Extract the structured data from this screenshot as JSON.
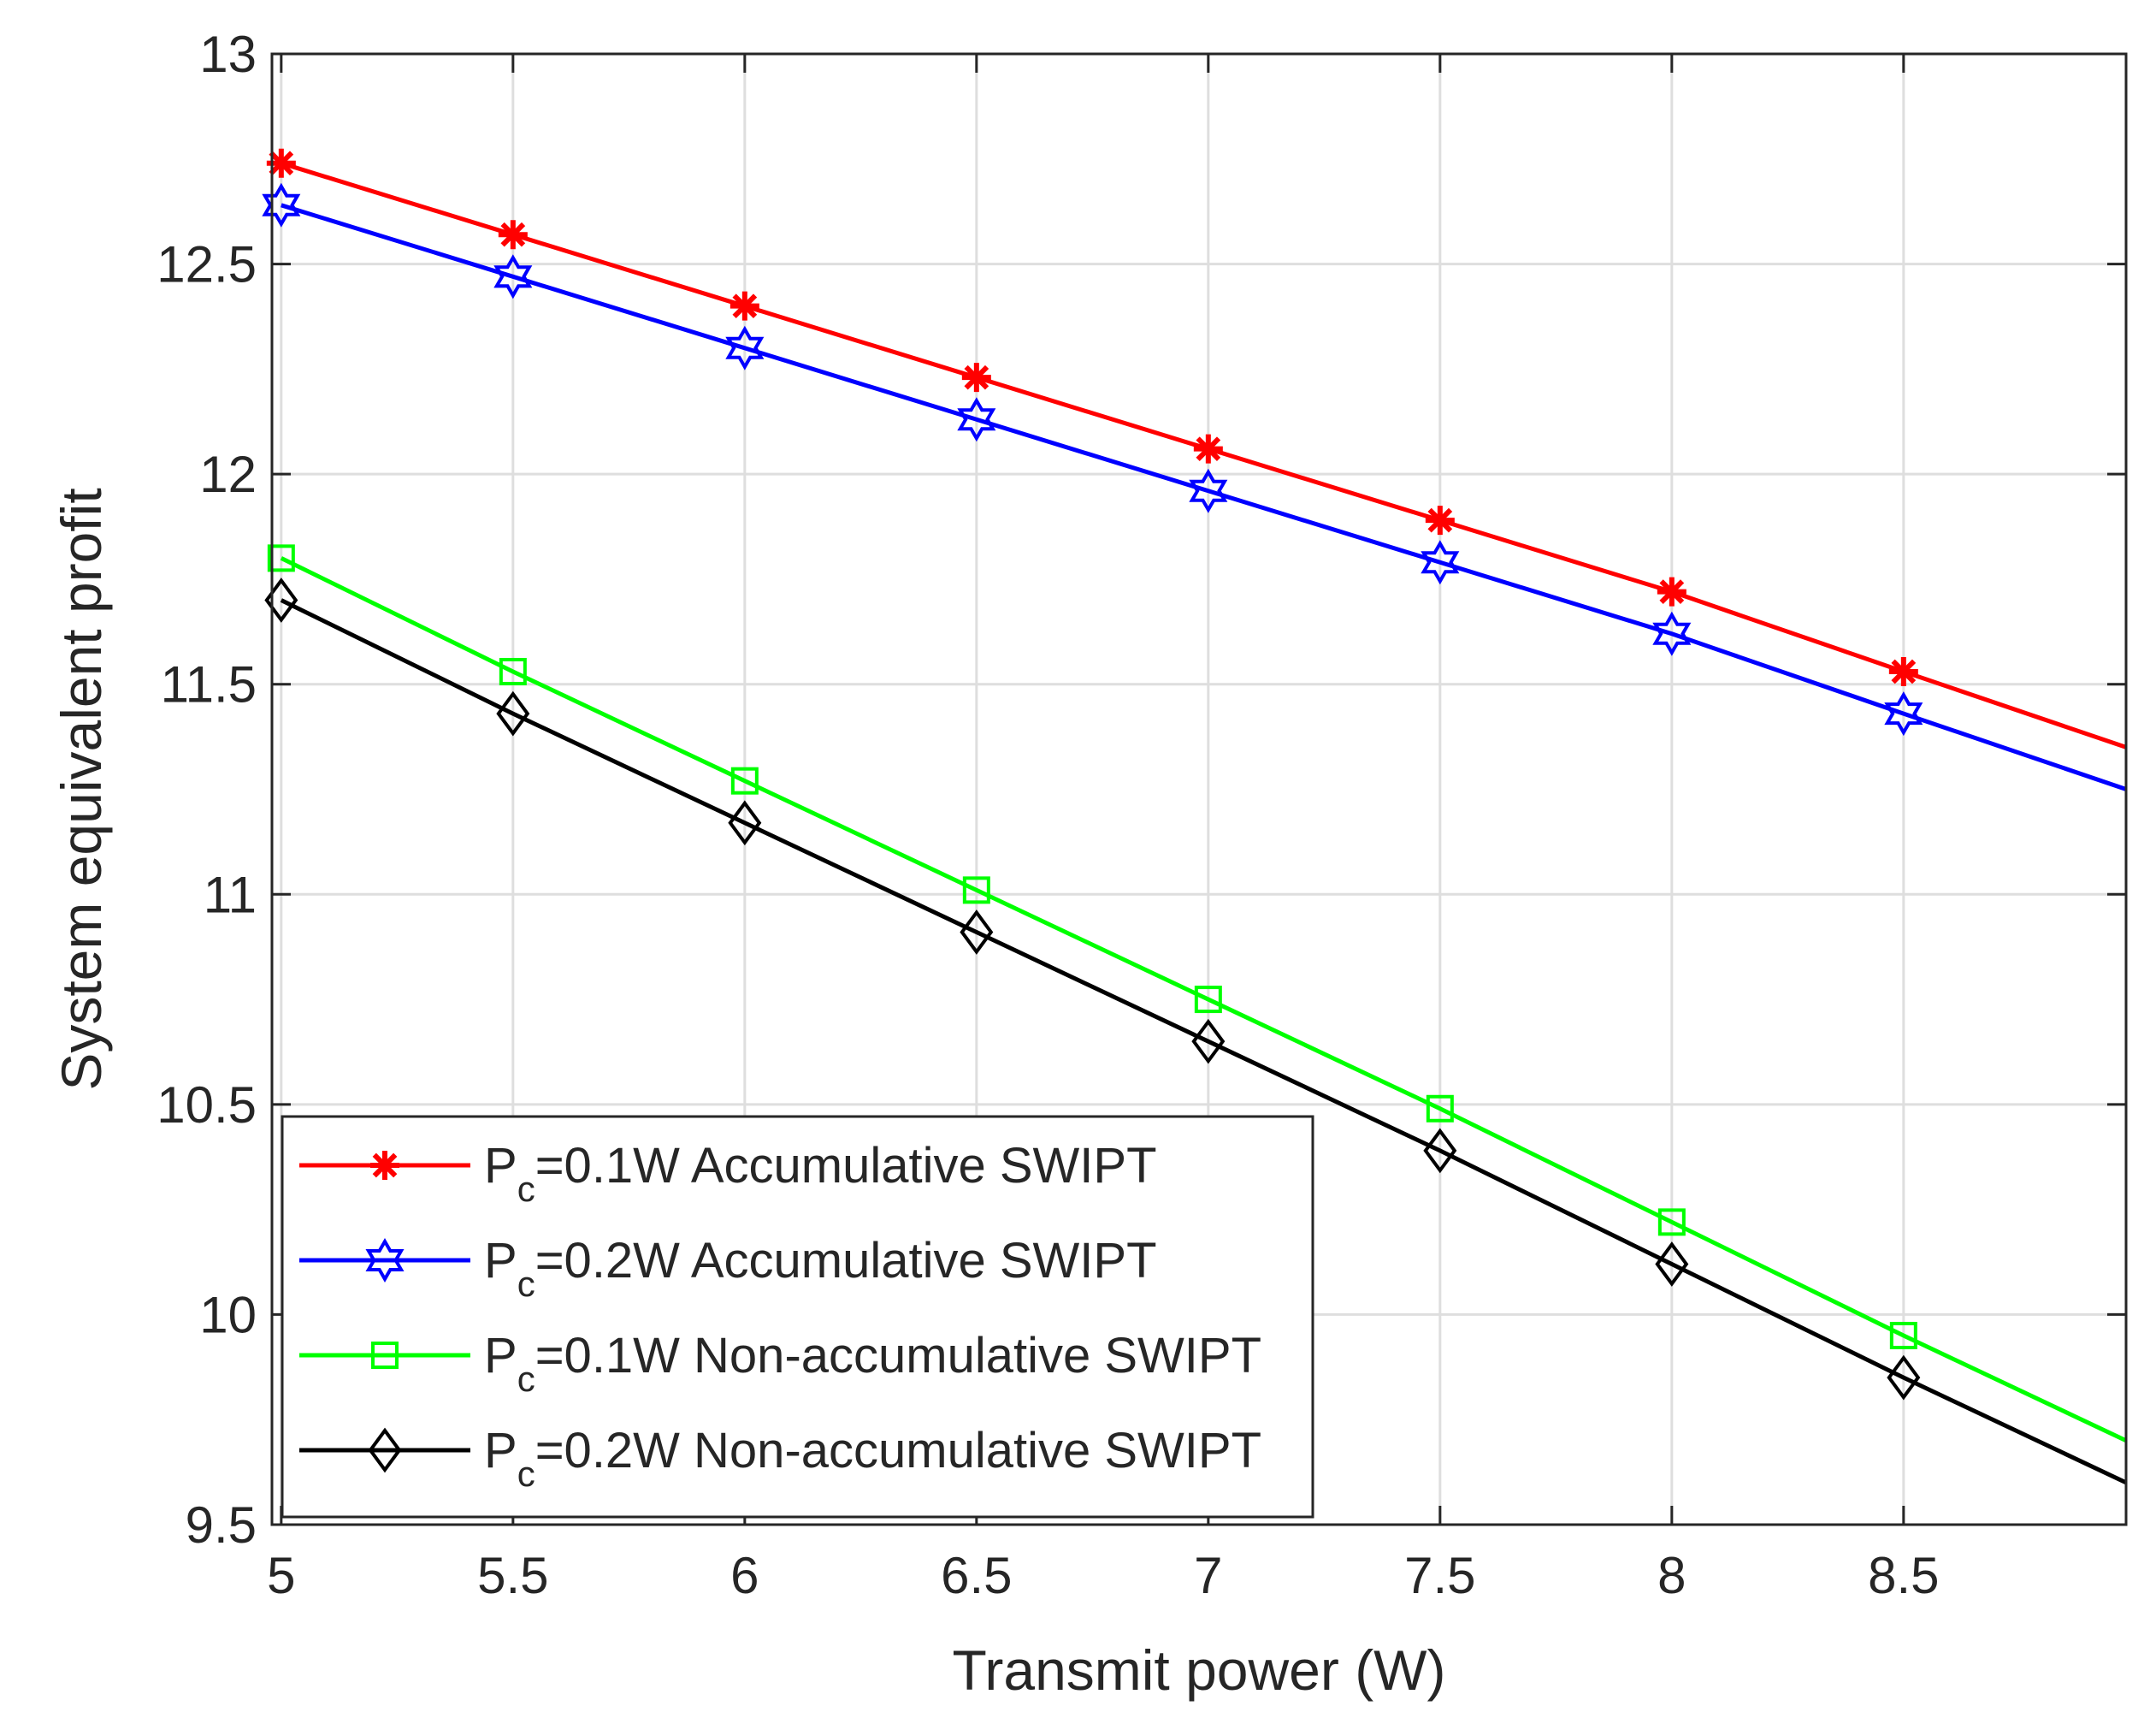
{
  "chart_data": {
    "type": "line",
    "xlabel": "Transmit power (W)",
    "ylabel": "System equivalent profit",
    "xlim": [
      4.98,
      8.98
    ],
    "ylim": [
      9.5,
      13
    ],
    "xticks": [
      5,
      5.5,
      6,
      6.5,
      7,
      7.5,
      8,
      8.5
    ],
    "xtick_labels": [
      "5",
      "5.5",
      "6",
      "6.5",
      "7",
      "7.5",
      "8",
      "8.5"
    ],
    "yticks": [
      9.5,
      10,
      10.5,
      11,
      11.5,
      12,
      12.5,
      13
    ],
    "ytick_labels": [
      "9.5",
      "10",
      "10.5",
      "11",
      "11.5",
      "12",
      "12.5",
      "13"
    ],
    "grid": true,
    "legend_position": "bottom-left",
    "series": [
      {
        "name": "Pc=0.1W Accumulative SWIPT",
        "legend_main": "P",
        "legend_sub": "c",
        "legend_rest": "=0.1W Accumulative SWIPT",
        "color": "#ff0000",
        "marker": "asterisk",
        "x": [
          5,
          5.5,
          6,
          6.5,
          7,
          7.5,
          8,
          8.5,
          8.98
        ],
        "y": [
          12.74,
          12.57,
          12.4,
          12.23,
          12.06,
          11.89,
          11.72,
          11.53,
          11.35
        ],
        "marker_x": [
          5,
          5.5,
          6,
          6.5,
          7,
          7.5,
          8,
          8.5
        ]
      },
      {
        "name": "Pc=0.2W Accumulative SWIPT",
        "legend_main": "P",
        "legend_sub": "c",
        "legend_rest": "=0.2W Accumulative SWIPT",
        "color": "#0000ff",
        "marker": "hexagram",
        "x": [
          5,
          5.5,
          6,
          6.5,
          7,
          7.5,
          8,
          8.5,
          8.98
        ],
        "y": [
          12.64,
          12.47,
          12.3,
          12.13,
          11.96,
          11.79,
          11.62,
          11.43,
          11.25
        ],
        "marker_x": [
          5,
          5.5,
          6,
          6.5,
          7,
          7.5,
          8,
          8.5
        ]
      },
      {
        "name": "Pc=0.1W Non-accumulative SWIPT",
        "legend_main": "P",
        "legend_sub": "c",
        "legend_rest": "=0.1W Non-accumulative SWIPT",
        "color": "#00ff00",
        "marker": "square",
        "x": [
          5,
          5.5,
          6,
          6.5,
          7,
          7.5,
          8,
          8.5,
          8.98
        ],
        "y": [
          11.8,
          11.53,
          11.27,
          11.01,
          10.75,
          10.49,
          10.22,
          9.95,
          9.7
        ],
        "marker_x": [
          5,
          5.5,
          6,
          6.5,
          7,
          7.5,
          8,
          8.5
        ]
      },
      {
        "name": "Pc=0.2W Non-accumulative SWIPT",
        "legend_main": "P",
        "legend_sub": "c",
        "legend_rest": "=0.2W Non-accumulative SWIPT",
        "color": "#000000",
        "marker": "diamond",
        "x": [
          5,
          5.5,
          6,
          6.5,
          7,
          7.5,
          8,
          8.5,
          8.98
        ],
        "y": [
          11.7,
          11.43,
          11.17,
          10.91,
          10.65,
          10.39,
          10.12,
          9.85,
          9.6
        ],
        "marker_x": [
          5,
          5.5,
          6,
          6.5,
          7,
          7.5,
          8,
          8.5
        ]
      }
    ]
  }
}
